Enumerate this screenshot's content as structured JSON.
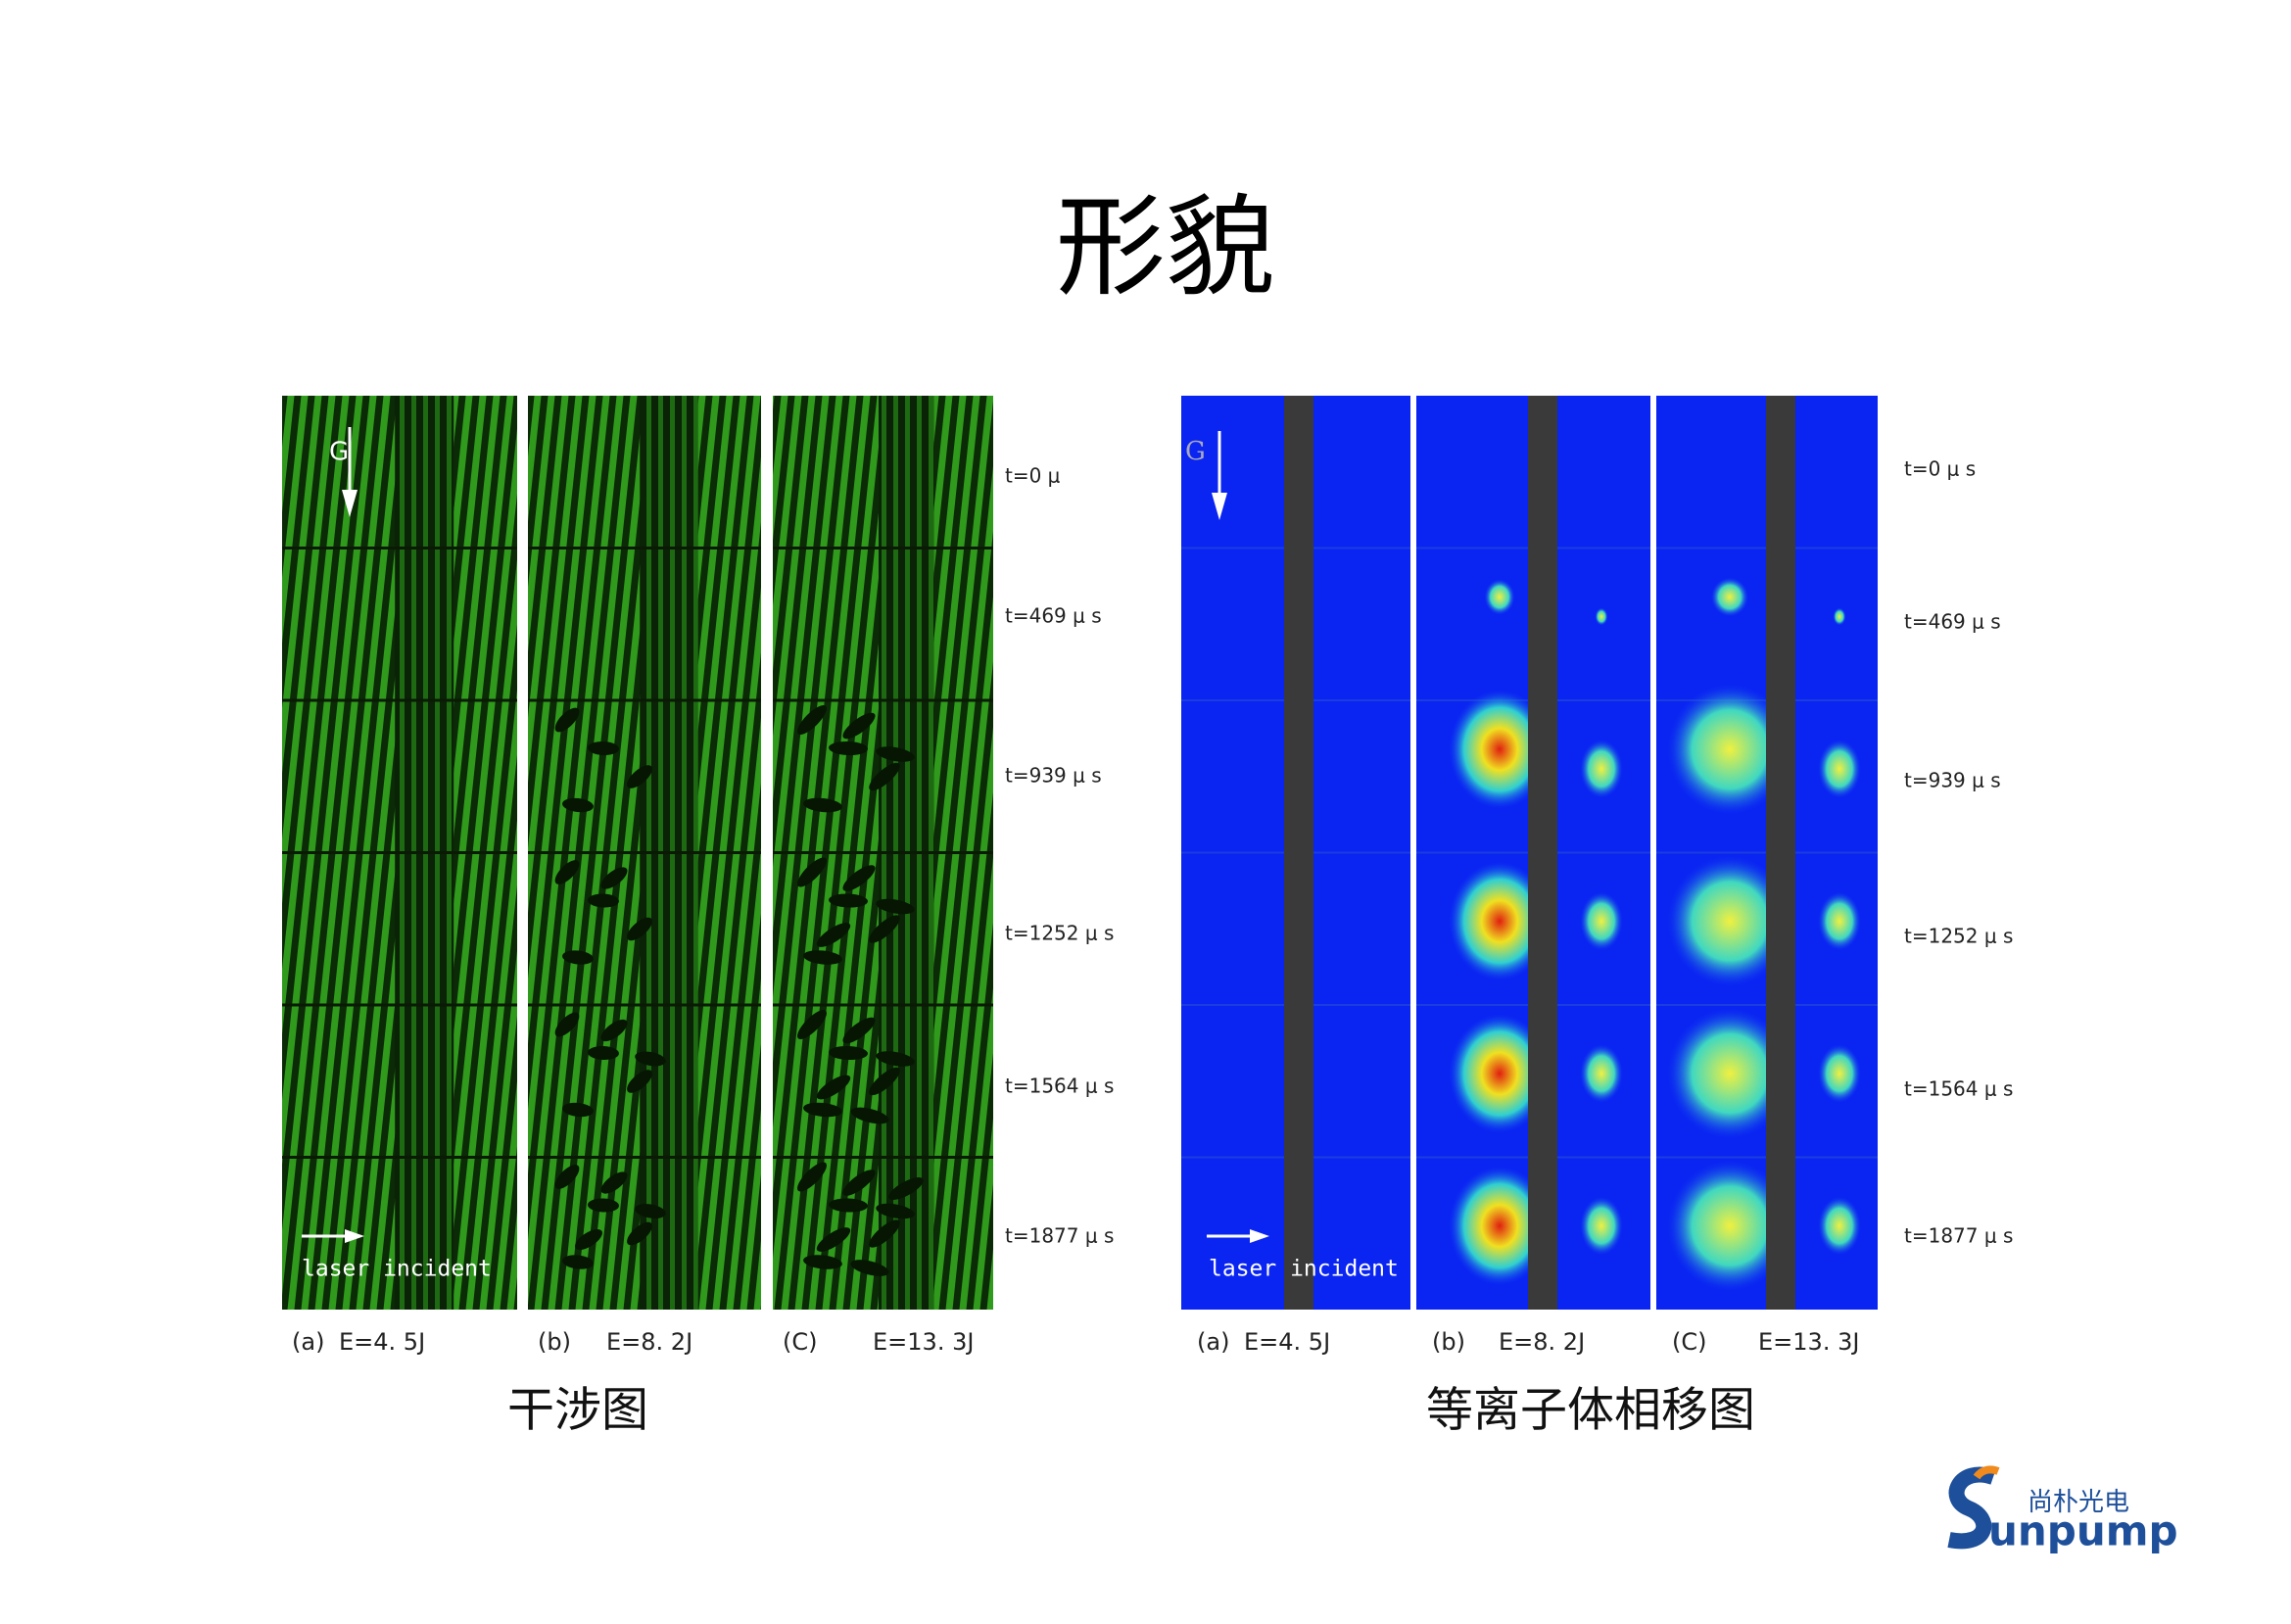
{
  "title": "形貌",
  "interferogram": {
    "caption": "干涉图",
    "gravity_label": "G",
    "laser_label": "laser incident",
    "panels": [
      {
        "label": "(a)",
        "energy": "E=4. 5J"
      },
      {
        "label": "(b)",
        "energy": "E=8. 2J"
      },
      {
        "label": "(C)",
        "energy": "E=13. 3J"
      }
    ],
    "times": [
      "t=0 μ",
      "t=469 μ s",
      "t=939 μ s",
      "t=1252 μ s",
      "t=1564 μ s",
      "t=1877 μ s"
    ]
  },
  "phase_shift": {
    "caption": "等离子体相移图",
    "gravity_label": "G",
    "laser_label": "laser incident",
    "panels": [
      {
        "label": "(a)",
        "energy": "E=4. 5J"
      },
      {
        "label": "(b)",
        "energy": "E=8. 2J"
      },
      {
        "label": "(C)",
        "energy": "E=13. 3J"
      }
    ],
    "times": [
      "t=0 μ s",
      "t=469 μ s",
      "t=939 μ s",
      "t=1252 μ s",
      "t=1564 μ s",
      "t=1877 μ s"
    ]
  },
  "logo": {
    "chinese": "尚朴光电",
    "english": "unpump"
  }
}
